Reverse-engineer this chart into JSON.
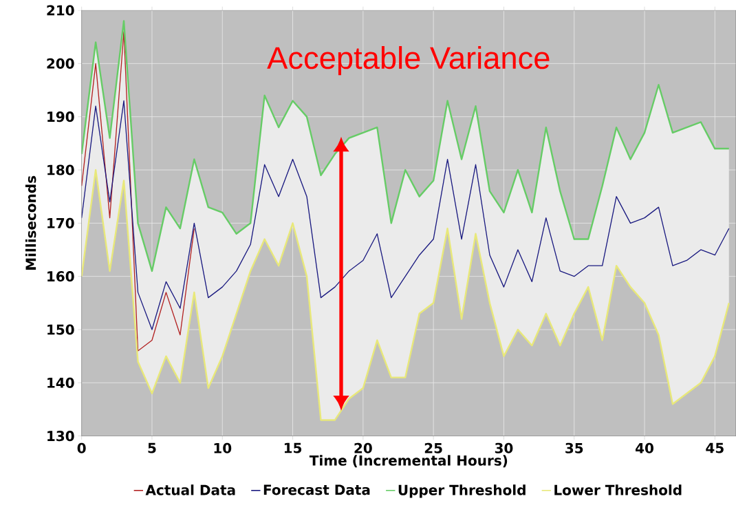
{
  "chart_data": {
    "type": "line",
    "xlabel": "Time (Incremental Hours)",
    "ylabel": "Milliseconds",
    "annotations": [
      "Acceptable Variance"
    ],
    "xlim": [
      0,
      46.5
    ],
    "ylim": [
      130,
      210
    ],
    "xticks": [
      0,
      5,
      10,
      15,
      20,
      25,
      30,
      35,
      40,
      45
    ],
    "yticks": [
      130,
      140,
      150,
      160,
      170,
      180,
      190,
      200,
      210
    ],
    "grid": true,
    "legend": "bottom",
    "marker": "none",
    "line_style": "solid",
    "x": [
      0,
      1,
      2,
      3,
      4,
      5,
      6,
      7,
      8,
      9,
      10,
      11,
      12,
      13,
      14,
      15,
      16,
      17,
      18,
      19,
      20,
      21,
      22,
      23,
      24,
      25,
      26,
      27,
      28,
      29,
      30,
      31,
      32,
      33,
      34,
      35,
      36,
      37,
      38,
      39,
      40,
      41,
      42,
      43,
      44,
      45,
      46
    ],
    "series": [
      {
        "name": "Actual Data",
        "color": "#b22222",
        "x": [
          0,
          1,
          2,
          3,
          4,
          5,
          6,
          7,
          8
        ],
        "values": [
          177,
          200,
          171,
          206,
          146,
          148,
          157,
          149,
          169
        ]
      },
      {
        "name": "Forecast Data",
        "color": "#1a1a80",
        "values": [
          171,
          192,
          174,
          193,
          157,
          150,
          159,
          154,
          170,
          156,
          158,
          161,
          166,
          181,
          175,
          182,
          175,
          156,
          158,
          161,
          163,
          168,
          156,
          160,
          164,
          167,
          182,
          167,
          181,
          164,
          158,
          165,
          159,
          171,
          161,
          160,
          162,
          162,
          175,
          170,
          171,
          173,
          162,
          163,
          165,
          164,
          169
        ],
        "upper": [
          183,
          204,
          186,
          208,
          170,
          161,
          173,
          169,
          182,
          173,
          172,
          168,
          170,
          194,
          188,
          193,
          190,
          179,
          183,
          186,
          187,
          188,
          170,
          180,
          175,
          178,
          193,
          182,
          192,
          176,
          172,
          180,
          172,
          188,
          176,
          167,
          167,
          177,
          188,
          182,
          187,
          196,
          187,
          188,
          189,
          184,
          184
        ],
        "lower": [
          160,
          180,
          161,
          178,
          144,
          138,
          145,
          140,
          157,
          139,
          145,
          153,
          161,
          167,
          162,
          170,
          160,
          133,
          133,
          137,
          139,
          148,
          141,
          141,
          153,
          155,
          169,
          152,
          168,
          155,
          145,
          150,
          147,
          153,
          147,
          153,
          158,
          148,
          162,
          158,
          155,
          149,
          136,
          138,
          140,
          145,
          155
        ]
      },
      {
        "name": "Upper Threshold",
        "color": "#66cc66",
        "values": [
          183,
          204,
          186,
          208,
          170,
          161,
          173,
          169,
          182,
          173,
          172,
          168,
          170,
          194,
          188,
          193,
          190,
          179,
          183,
          186,
          187,
          188,
          170,
          180,
          175,
          178,
          193,
          182,
          192,
          176,
          172,
          180,
          172,
          188,
          176,
          167,
          167,
          177,
          188,
          182,
          187,
          196,
          187,
          188,
          189,
          184,
          184
        ]
      },
      {
        "name": "Lower Threshold",
        "color": "#e8e87a",
        "values": [
          160,
          180,
          161,
          178,
          144,
          138,
          145,
          140,
          157,
          139,
          145,
          153,
          161,
          167,
          162,
          170,
          160,
          133,
          133,
          137,
          139,
          148,
          141,
          141,
          153,
          155,
          169,
          152,
          168,
          155,
          145,
          150,
          147,
          153,
          147,
          153,
          158,
          148,
          162,
          158,
          155,
          149,
          136,
          138,
          140,
          145,
          155
        ]
      }
    ]
  }
}
